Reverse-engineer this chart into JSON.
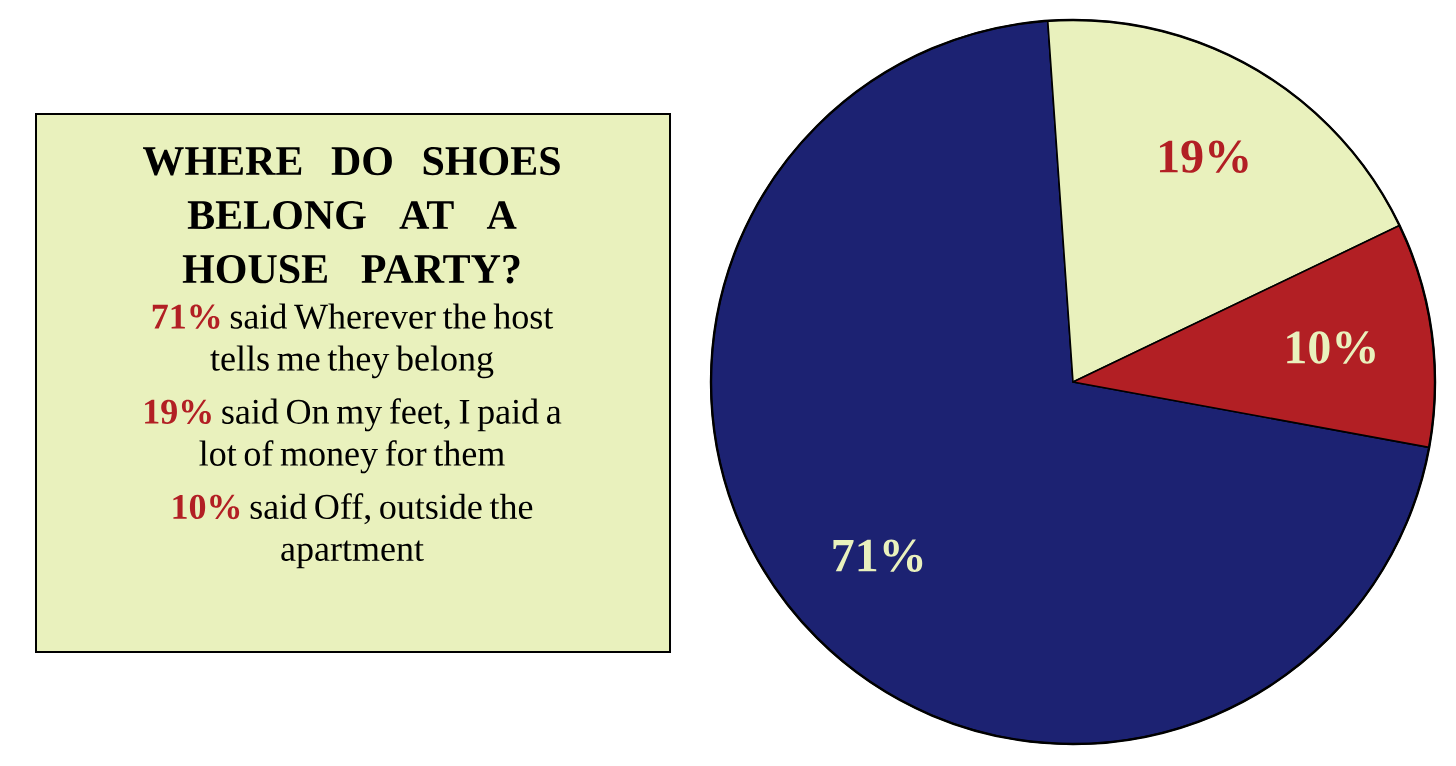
{
  "chart_data": {
    "type": "pie",
    "title": "WHERE DO SHOES BELONG AT A HOUSE PARTY?",
    "categories": [
      null,
      null,
      null
    ],
    "annotations": [
      "said Wherever the host tells me they belong",
      "said On my feet, I paid a lot of money for them",
      "said Off, outside the apartment"
    ],
    "values": [
      71,
      19,
      10
    ],
    "colors": [
      "#1c2272",
      "#e9f1bd",
      "#b21f24"
    ],
    "value_labels": [
      "71%",
      "19%",
      "10%"
    ]
  }
}
